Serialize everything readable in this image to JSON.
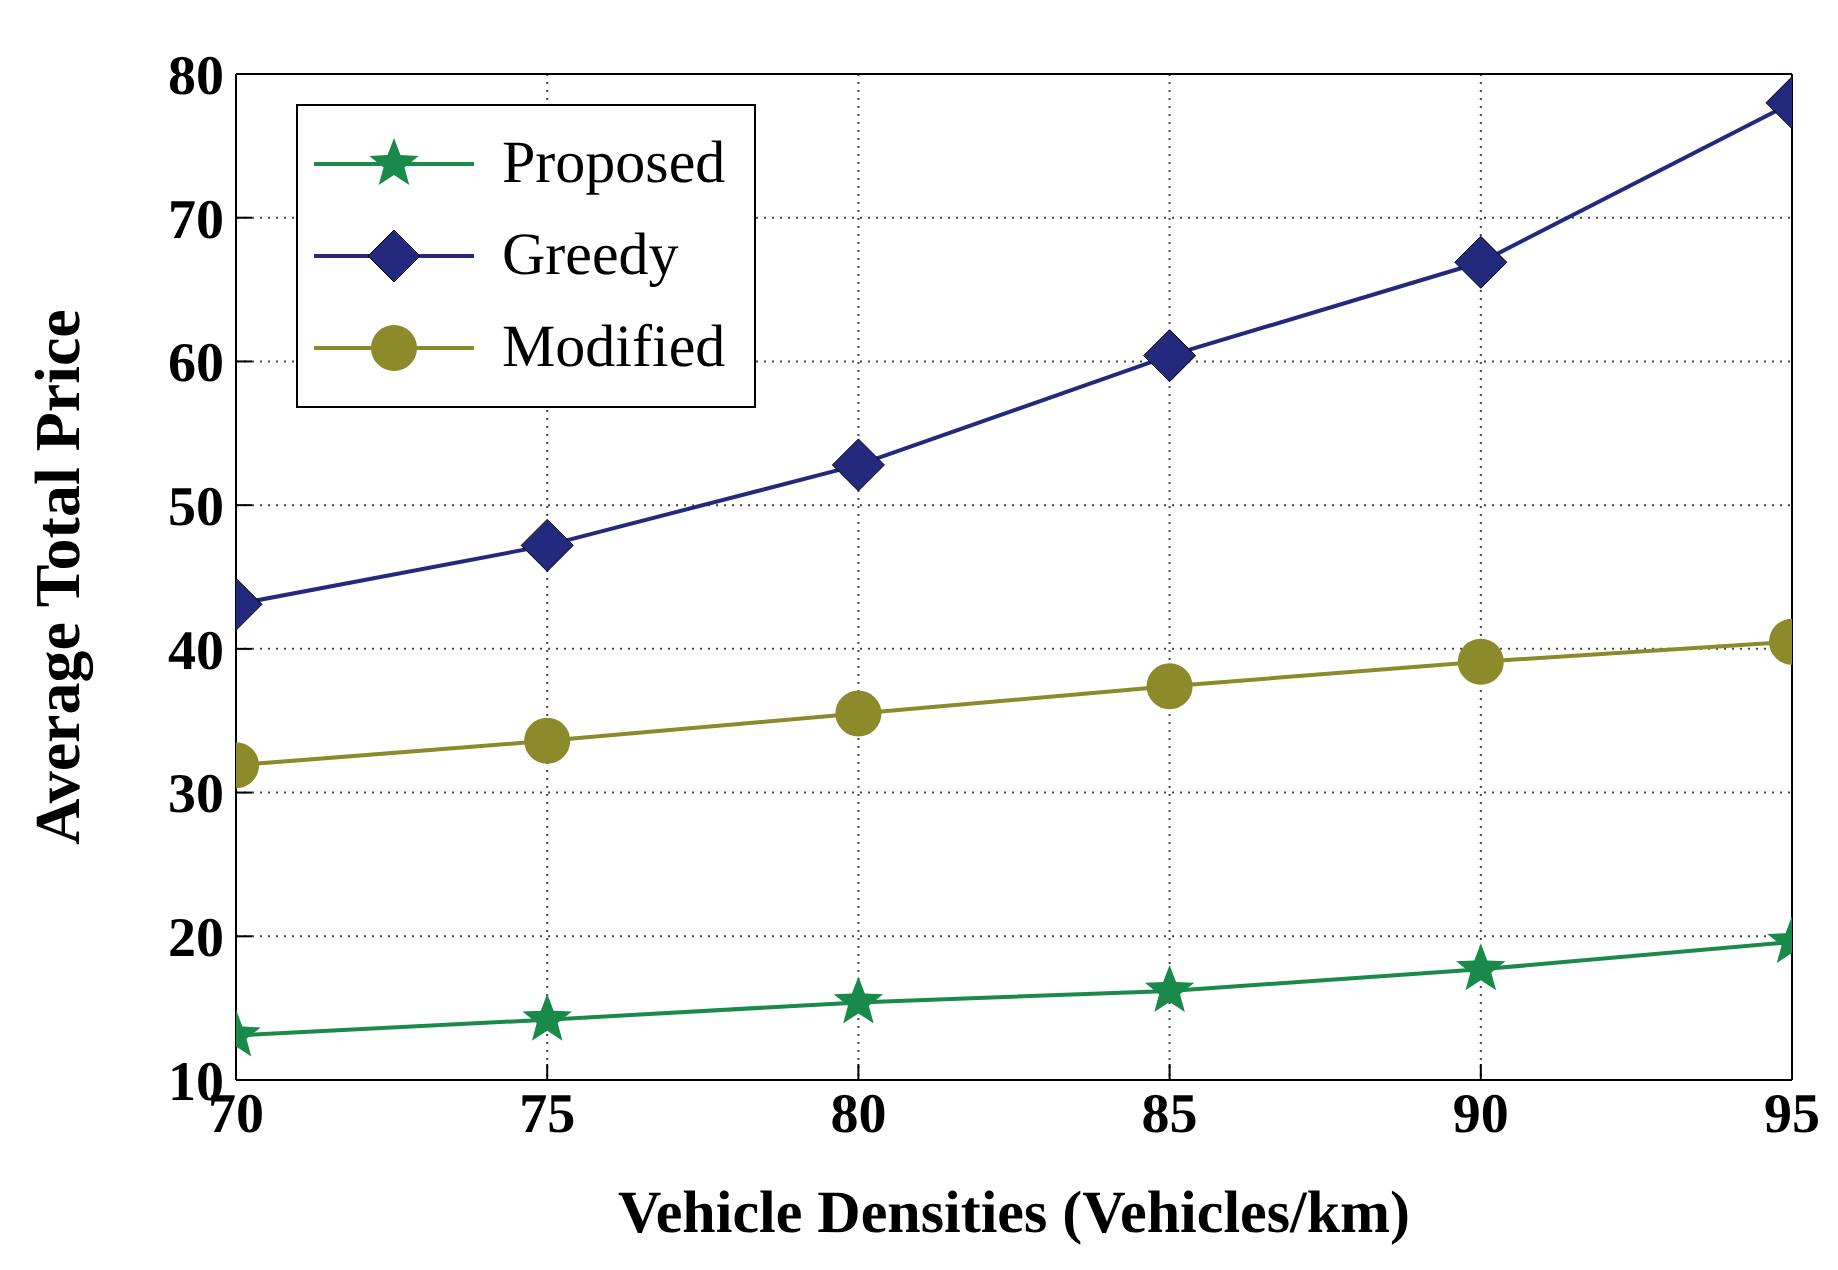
{
  "chart_data": {
    "type": "line",
    "xlabel": "Vehicle Densities (Vehicles/km)",
    "ylabel": "Average Total Price",
    "x": [
      70,
      75,
      80,
      85,
      90,
      95
    ],
    "series": [
      {
        "name": "Proposed",
        "color": "#1a8a4a",
        "marker": "star",
        "values": [
          13.1,
          14.2,
          15.4,
          16.2,
          17.7,
          19.6
        ]
      },
      {
        "name": "Greedy",
        "color": "#232a7e",
        "marker": "diamond",
        "values": [
          43.1,
          47.2,
          52.8,
          60.4,
          66.9,
          78
        ]
      },
      {
        "name": "Modified",
        "color": "#8c8a2a",
        "marker": "circle",
        "values": [
          31.9,
          33.6,
          35.5,
          37.4,
          39.1,
          40.5
        ]
      }
    ],
    "xlim": [
      70,
      95
    ],
    "xticks": [
      70,
      75,
      80,
      85,
      90,
      95
    ],
    "ylim": [
      10,
      80
    ],
    "yticks": [
      10,
      20,
      30,
      40,
      50,
      60,
      70,
      80
    ],
    "grid": true,
    "legend": "top left",
    "line_style": "solid"
  }
}
